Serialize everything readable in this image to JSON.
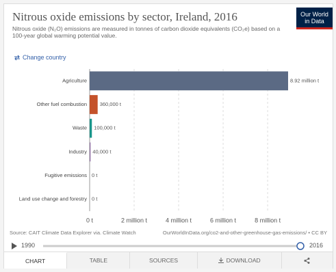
{
  "chart_data": {
    "type": "bar",
    "orientation": "horizontal",
    "title": "Nitrous oxide emissions by sector, Ireland, 2016",
    "subtitle": "Nitrous oxide (N₂O) emissions are measured in tonnes of carbon dioxide equivalents (CO₂e) based on a 100-year global warming potential value.",
    "categories": [
      "Agriculture",
      "Other fuel combustion",
      "Waste",
      "Industry",
      "Fugitive emissions",
      "Land use change and forestry"
    ],
    "values": [
      8920000,
      360000,
      100000,
      40000,
      0,
      0
    ],
    "value_labels": [
      "8.92 million t",
      "360,000 t",
      "100,000 t",
      "40,000 t",
      "0 t",
      "0 t"
    ],
    "colors": [
      "#5b6a84",
      "#c4522a",
      "#18958a",
      "#8b6aa0",
      "#b13507",
      "#4c6a9c"
    ],
    "xlim": [
      0,
      8920000
    ],
    "xticks": [
      {
        "value": 0,
        "label": "0 t"
      },
      {
        "value": 2000000,
        "label": "2 million t"
      },
      {
        "value": 4000000,
        "label": "4 million t"
      },
      {
        "value": 6000000,
        "label": "6 million t"
      },
      {
        "value": 8000000,
        "label": "8 million t"
      }
    ],
    "grid": true,
    "source": "Source: CAIT Climate Data Explorer via. Climate Watch",
    "url": "OurWorldInData.org/co2-and-other-greenhouse-gas-emissions/ • CC BY"
  },
  "ui": {
    "logo": [
      "Our World",
      "in Data"
    ],
    "change_country": "Change country",
    "timeline": {
      "start": "1990",
      "end": "2016"
    },
    "tabs": [
      "CHART",
      "TABLE",
      "SOURCES",
      "DOWNLOAD"
    ]
  }
}
